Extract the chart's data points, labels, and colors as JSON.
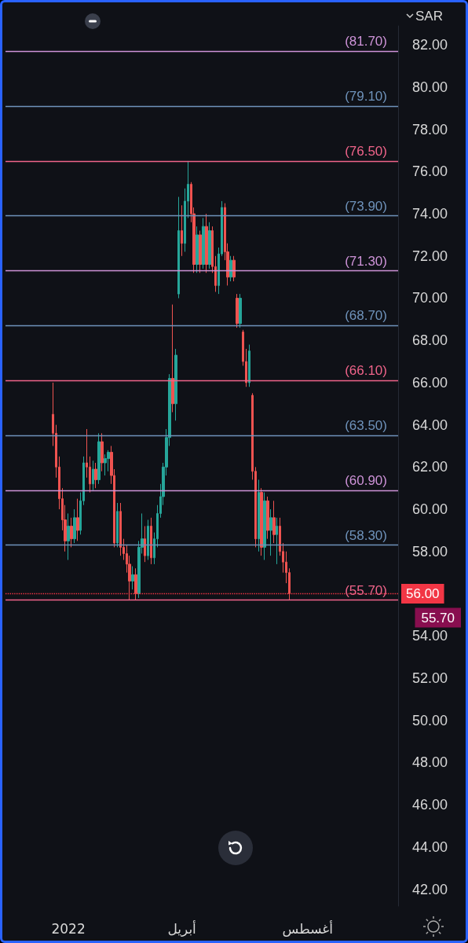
{
  "chart_data": {
    "type": "candlestick",
    "ylabel": "SAR",
    "categories": [
      null,
      null,
      null,
      null,
      null,
      null,
      null,
      null,
      null,
      null,
      null,
      null,
      null,
      null,
      null,
      null,
      null,
      null,
      null,
      null,
      "2022",
      null,
      null,
      null,
      null,
      null,
      null,
      null,
      null,
      null,
      null,
      null,
      null,
      null,
      null,
      null,
      null,
      null,
      null,
      null,
      null,
      null,
      null,
      null,
      null,
      null,
      null,
      null,
      null,
      null,
      null,
      null,
      null,
      null,
      null,
      null,
      null,
      "أبريل",
      null,
      null,
      null,
      null,
      null,
      null,
      null,
      null,
      null,
      null,
      null,
      null,
      null,
      null,
      null,
      null,
      null,
      null,
      null,
      null,
      null,
      null,
      null,
      null,
      null,
      null,
      null,
      null,
      null,
      null,
      null,
      null,
      null,
      null,
      null,
      null,
      null,
      null,
      null,
      null,
      "أغسطس",
      null,
      null,
      null,
      null,
      null,
      null,
      null,
      null,
      null,
      null,
      null,
      null,
      null,
      null,
      null,
      null,
      null,
      null,
      null,
      null,
      null,
      null,
      null,
      null,
      null,
      null,
      null,
      null,
      null
    ],
    "ohlc": [
      null,
      null,
      null,
      null,
      null,
      null,
      null,
      null,
      null,
      null,
      null,
      null,
      null,
      null,
      null,
      [
        64.5,
        66,
        63,
        63.6
      ],
      [
        63.6,
        64,
        61.5,
        62
      ],
      [
        62,
        62.5,
        60,
        60.5
      ],
      [
        60.5,
        61,
        59,
        59.5
      ],
      [
        59.5,
        60.2,
        58,
        58.5
      ],
      [
        58.5,
        59.8,
        57.6,
        59.2
      ],
      [
        59.2,
        59.6,
        58.2,
        58.6
      ],
      [
        58.6,
        60,
        58.4,
        59.6
      ],
      [
        59.6,
        60.5,
        58.5,
        59
      ],
      [
        59,
        60.8,
        58.8,
        60.4
      ],
      [
        60.4,
        62.5,
        60.2,
        62.2
      ],
      [
        62.2,
        63.8,
        61.5,
        62
      ],
      [
        62,
        62.5,
        60.8,
        61.2
      ],
      [
        61.2,
        62.3,
        60.9,
        61.9
      ],
      [
        61.9,
        62.2,
        61,
        61.4
      ],
      [
        61.4,
        63.6,
        61.2,
        63.2
      ],
      [
        63.2,
        63.6,
        61.8,
        62.2
      ],
      [
        62.2,
        62.6,
        61.6,
        62.4
      ],
      [
        62.4,
        62.8,
        61.8,
        62.7
      ],
      [
        62.7,
        63,
        61.2,
        61.6
      ],
      [
        61.6,
        61.9,
        58.2,
        58.4
      ],
      [
        58.4,
        60.3,
        58.2,
        59.9
      ],
      [
        59.9,
        60.3,
        57.8,
        58.2
      ],
      [
        58.2,
        58.6,
        57.6,
        57.9
      ],
      [
        57.9,
        58.3,
        57,
        57.4
      ],
      [
        57.4,
        57.8,
        55.7,
        56.6
      ],
      [
        56.6,
        57.3,
        56.2,
        56.9
      ],
      [
        56.9,
        57.2,
        55.7,
        56
      ],
      [
        56,
        58.5,
        55.8,
        58.2
      ],
      [
        58.2,
        59.8,
        57.9,
        58.6
      ],
      [
        58.6,
        59.2,
        57.5,
        57.8
      ],
      [
        57.8,
        59.5,
        57.6,
        59.2
      ],
      [
        59.2,
        59.6,
        57.4,
        57.7
      ],
      [
        57.7,
        58.9,
        57.4,
        58.6
      ],
      [
        58.6,
        60.2,
        58.2,
        59.8
      ],
      [
        59.8,
        61.2,
        59.6,
        60.6
      ],
      [
        60.6,
        62.2,
        60.2,
        62
      ],
      [
        62,
        63.8,
        61.6,
        63.4
      ],
      [
        63.4,
        66.4,
        63,
        66.2
      ],
      [
        66.2,
        69.7,
        64.6,
        65
      ],
      [
        65,
        67.6,
        64.2,
        67.3
      ],
      [
        70.2,
        74.8,
        70,
        73.2
      ],
      [
        73.2,
        74.4,
        72,
        72.6
      ],
      [
        72.6,
        75.2,
        72.2,
        74.6
      ],
      [
        74.6,
        76.5,
        73.8,
        75.4
      ],
      [
        75.4,
        75.5,
        73.6,
        74
      ],
      [
        74,
        74.3,
        71.2,
        71.6
      ],
      [
        71.6,
        73.4,
        71.2,
        73
      ],
      [
        73,
        73.2,
        71.2,
        71.6
      ],
      [
        71.6,
        73.8,
        71.4,
        73.4
      ],
      [
        73.4,
        74,
        71.2,
        71.6
      ],
      [
        71.6,
        73.6,
        71.4,
        73.2
      ],
      [
        73.2,
        73.4,
        71.2,
        71.5
      ],
      [
        71.5,
        72,
        70.3,
        70.6
      ],
      [
        70.6,
        72.4,
        70.2,
        72.1
      ],
      [
        72.1,
        74.6,
        72,
        74.3
      ],
      [
        74.3,
        74.5,
        71.8,
        72.2
      ],
      [
        72.2,
        72.6,
        70.6,
        71
      ],
      [
        71,
        72,
        70.8,
        71.8
      ],
      [
        71.8,
        72,
        70.8,
        71
      ],
      [
        70,
        70.2,
        68.6,
        68.8
      ],
      [
        68.8,
        70.2,
        68.6,
        70
      ],
      [
        68.4,
        68.5,
        66.8,
        67
      ],
      [
        67,
        67.6,
        65.8,
        66
      ],
      [
        66,
        67.8,
        65.8,
        67.5
      ],
      [
        65.4,
        65.5,
        61.4,
        61.8
      ],
      [
        61.8,
        62,
        58.2,
        58.6
      ],
      [
        58.6,
        61.4,
        58,
        60.8
      ],
      [
        60.8,
        61,
        57.8,
        58.2
      ],
      [
        58.2,
        60.8,
        57.6,
        60.4
      ],
      [
        60.4,
        60.6,
        58.6,
        59
      ],
      [
        59,
        60,
        57.8,
        59.6
      ],
      [
        59.6,
        60.4,
        58.4,
        58.8
      ],
      [
        58.8,
        59.6,
        57.4,
        59.2
      ],
      [
        59.2,
        59.6,
        57.8,
        58
      ],
      [
        58,
        58.4,
        57,
        57.5
      ],
      [
        57.5,
        58,
        56.5,
        57
      ],
      [
        57,
        57.2,
        55.7,
        56
      ],
      null,
      null,
      null,
      null,
      null,
      null,
      null,
      null,
      null,
      null,
      null,
      null,
      null,
      null,
      null,
      null,
      null,
      null,
      null,
      null,
      null,
      null,
      null,
      null,
      null,
      null,
      null,
      null,
      null,
      null,
      null,
      null,
      null,
      null,
      null
    ],
    "colors": [
      null,
      null,
      null,
      null,
      null,
      null,
      null,
      null,
      null,
      null,
      null,
      null,
      null,
      null,
      null,
      "#ef5350",
      "#ef5350",
      "#ef5350",
      "#ef5350",
      "#ef5350",
      "#26a69a",
      "#ef5350",
      "#26a69a",
      "#ef5350",
      "#26a69a",
      "#26a69a",
      "#ef5350",
      "#ef5350",
      "#26a69a",
      "#ef5350",
      "#26a69a",
      "#ef5350",
      "#26a69a",
      "#26a69a",
      "#ef5350",
      "#ef5350",
      "#26a69a",
      "#ef5350",
      "#ef5350",
      "#ef5350",
      "#ef5350",
      "#26a69a",
      "#ef5350",
      "#26a69a",
      "#26a69a",
      "#ef5350",
      "#26a69a",
      "#ef5350",
      "#26a69a",
      "#26a69a",
      "#26a69a",
      "#26a69a",
      "#26a69a",
      "#26a69a",
      "#ef5350",
      "#26a69a",
      "#26a69a",
      "#ef5350",
      "#26a69a",
      "#26a69a",
      "#ef5350",
      "#ef5350",
      "#26a69a",
      "#ef5350",
      "#26a69a",
      "#ef5350",
      "#26a69a",
      "#ef5350",
      "#ef5350",
      "#26a69a",
      "#26a69a",
      "#ef5350",
      "#ef5350",
      "#26a69a",
      "#ef5350",
      "#ef5350",
      "#26a69a",
      "#ef5350",
      "#ef5350",
      "#26a69a",
      "#ef5350",
      "#ef5350",
      "#26a69a",
      "#ef5350",
      "#26a69a",
      "#ef5350",
      "#26a69a",
      "#ef5350",
      "#26a69a",
      "#ef5350",
      "#ef5350",
      "#ef5350",
      "#ef5350",
      null,
      null,
      null,
      null,
      null,
      null,
      null,
      null,
      null,
      null,
      null,
      null,
      null,
      null,
      null,
      null,
      null,
      null,
      null,
      null,
      null,
      null,
      null,
      null,
      null,
      null,
      null,
      null,
      null,
      null,
      null,
      null,
      null,
      null,
      null
    ],
    "ylim": [
      41.2,
      82.9
    ],
    "yticks": [
      {
        "value": 42,
        "label": "42.00"
      },
      {
        "value": 44,
        "label": "44.00"
      },
      {
        "value": 46,
        "label": "46.00"
      },
      {
        "value": 48,
        "label": "48.00"
      },
      {
        "value": 50,
        "label": "50.00"
      },
      {
        "value": 52,
        "label": "52.00"
      },
      {
        "value": 54,
        "label": "54.00"
      },
      {
        "value": 56,
        "label": null
      },
      {
        "value": 58,
        "label": "58.00"
      },
      {
        "value": 60,
        "label": "60.00"
      },
      {
        "value": 62,
        "label": "62.00"
      },
      {
        "value": 64,
        "label": "64.00"
      },
      {
        "value": 66,
        "label": "66.00"
      },
      {
        "value": 68,
        "label": "68.00"
      },
      {
        "value": 70,
        "label": "70.00"
      },
      {
        "value": 72,
        "label": "72.00"
      },
      {
        "value": 74,
        "label": "74.00"
      },
      {
        "value": 76,
        "label": "76.00"
      },
      {
        "value": 78,
        "label": "78.00"
      },
      {
        "value": 80,
        "label": "80.00"
      },
      {
        "value": 82,
        "label": "82.00"
      }
    ],
    "grid": false,
    "ref_lines": [
      {
        "axis": "y",
        "value": 81.7,
        "label": "(81.70)",
        "color": "#ce93d8"
      },
      {
        "axis": "y",
        "value": 79.1,
        "label": "(79.10)",
        "color": "#6f93bb"
      },
      {
        "axis": "y",
        "value": 76.5,
        "label": "(76.50)",
        "color": "#f0648a"
      },
      {
        "axis": "y",
        "value": 73.9,
        "label": "(73.90)",
        "color": "#6f93bb"
      },
      {
        "axis": "y",
        "value": 71.3,
        "label": "(71.30)",
        "color": "#ce93d8"
      },
      {
        "axis": "y",
        "value": 68.7,
        "label": "(68.70)",
        "color": "#6f93bb"
      },
      {
        "axis": "y",
        "value": 66.1,
        "label": "(66.10)",
        "color": "#f0648a"
      },
      {
        "axis": "y",
        "value": 63.5,
        "label": "(63.50)",
        "color": "#6f93bb"
      },
      {
        "axis": "y",
        "value": 60.9,
        "label": "(60.90)",
        "color": "#ce93d8"
      },
      {
        "axis": "y",
        "value": 58.3,
        "label": "(58.30)",
        "color": "#6f93bb"
      },
      {
        "axis": "y",
        "value": 55.7,
        "label": "(55.70)",
        "color": "#f0648a"
      },
      {
        "axis": "y",
        "value": 56,
        "label": "56.00",
        "color": "#f23645",
        "line_style": "dotted"
      }
    ],
    "annotations": [
      "55.70"
    ]
  }
}
